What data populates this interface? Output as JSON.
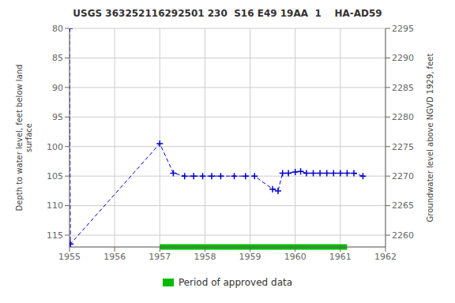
{
  "chart_data": {
    "type": "line",
    "title": "USGS 363252116292501 230  S16 E49 19AA  1    HA-AD59",
    "ylabel": "Depth to water level, feet below land\nsurface",
    "y2label": "Groundwater level above NGVD 1929, feet",
    "x": [
      1955.0,
      1955.02,
      1957.0,
      1957.3,
      1957.55,
      1957.75,
      1957.95,
      1958.15,
      1958.35,
      1958.65,
      1958.9,
      1959.1,
      1959.5,
      1959.62,
      1959.72,
      1959.85,
      1960.0,
      1960.12,
      1960.25,
      1960.4,
      1960.55,
      1960.7,
      1960.85,
      1961.0,
      1961.15,
      1961.3,
      1961.5
    ],
    "values": [
      80.0,
      116.5,
      99.5,
      104.5,
      105.0,
      105.0,
      105.0,
      105.0,
      105.0,
      105.0,
      105.0,
      105.0,
      107.2,
      107.5,
      104.5,
      104.5,
      104.3,
      104.2,
      104.5,
      104.5,
      104.5,
      104.5,
      104.5,
      104.5,
      104.5,
      104.5,
      105.0
    ],
    "color": "#0000CC",
    "marker": "plus",
    "line_style": "dashed",
    "xlim": [
      1955,
      1962
    ],
    "xticks": [
      1955,
      1956,
      1957,
      1958,
      1959,
      1960,
      1961,
      1962
    ],
    "ylim": [
      117,
      80
    ],
    "yticks": [
      80,
      85,
      90,
      95,
      100,
      105,
      110,
      115
    ],
    "y2lim": [
      2258,
      2295
    ],
    "y2ticks": [
      2295,
      2290,
      2285,
      2280,
      2275,
      2270,
      2265,
      2260
    ],
    "grid": true,
    "legend": "bottom",
    "approved_period": {
      "label": "Period of approved data",
      "start": 1957.0,
      "end": 1961.15,
      "color": "#00BB00"
    }
  }
}
